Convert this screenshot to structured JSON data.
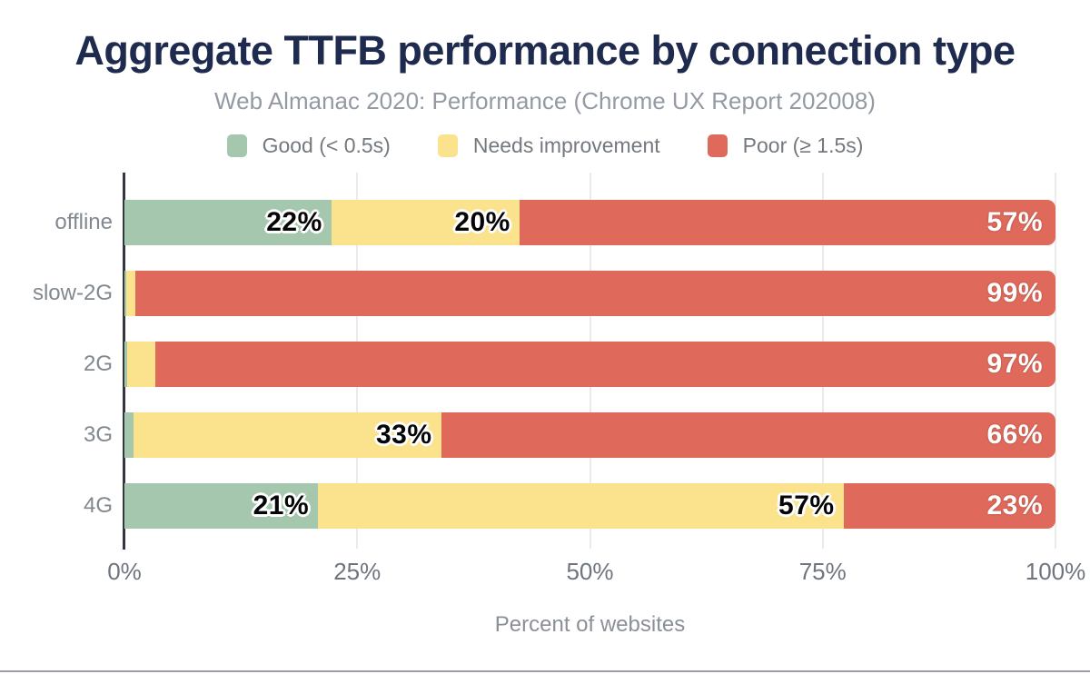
{
  "header": {
    "title": "Aggregate TTFB performance by connection type",
    "subtitle": "Web Almanac 2020: Performance (Chrome UX Report 202008)",
    "title_color": "#1f2b4e",
    "subtitle_color": "#949aa3"
  },
  "chart_data": {
    "type": "bar",
    "orientation": "horizontal-stacked",
    "title": "Aggregate TTFB performance by connection type",
    "subtitle": "Web Almanac 2020: Performance (Chrome UX Report 202008)",
    "categories": [
      "offline",
      "slow-2G",
      "2G",
      "3G",
      "4G"
    ],
    "series": [
      {
        "name": "Good (< 0.5s)",
        "color": "#a5c7ae",
        "values": [
          22,
          0.2,
          0.3,
          1,
          21
        ],
        "labels": [
          "22%",
          null,
          null,
          "1%",
          "21%"
        ]
      },
      {
        "name": "Needs improvement",
        "color": "#fbe28c",
        "values": [
          20,
          1,
          3,
          33,
          57
        ],
        "labels": [
          "20%",
          "1%",
          "3%",
          "33%",
          "57%"
        ]
      },
      {
        "name": "Poor (≥ 1.5s)",
        "color": "#df6a5c",
        "values": [
          57,
          99,
          97,
          66,
          23
        ],
        "labels": [
          "57%",
          "99%",
          "97%",
          "66%",
          "23%"
        ]
      }
    ],
    "xticks": [
      {
        "label": "0%",
        "value": 0
      },
      {
        "label": "25%",
        "value": 25
      },
      {
        "label": "50%",
        "value": 50
      },
      {
        "label": "75%",
        "value": 75
      },
      {
        "label": "100%",
        "value": 100
      }
    ],
    "xlabel": "Percent of websites",
    "xlim": [
      0,
      100
    ],
    "grid": "vertical",
    "legend_position": "top",
    "label_colors": {
      "on_segment": "#050505",
      "on_poor": "#ffffff"
    },
    "axis_colors": {
      "axis_line": "#34373e",
      "grid_line": "#ebebeb",
      "tick_text": "#6f757e",
      "category_text": "#82888f",
      "axis_title_text": "#8b9097"
    }
  }
}
